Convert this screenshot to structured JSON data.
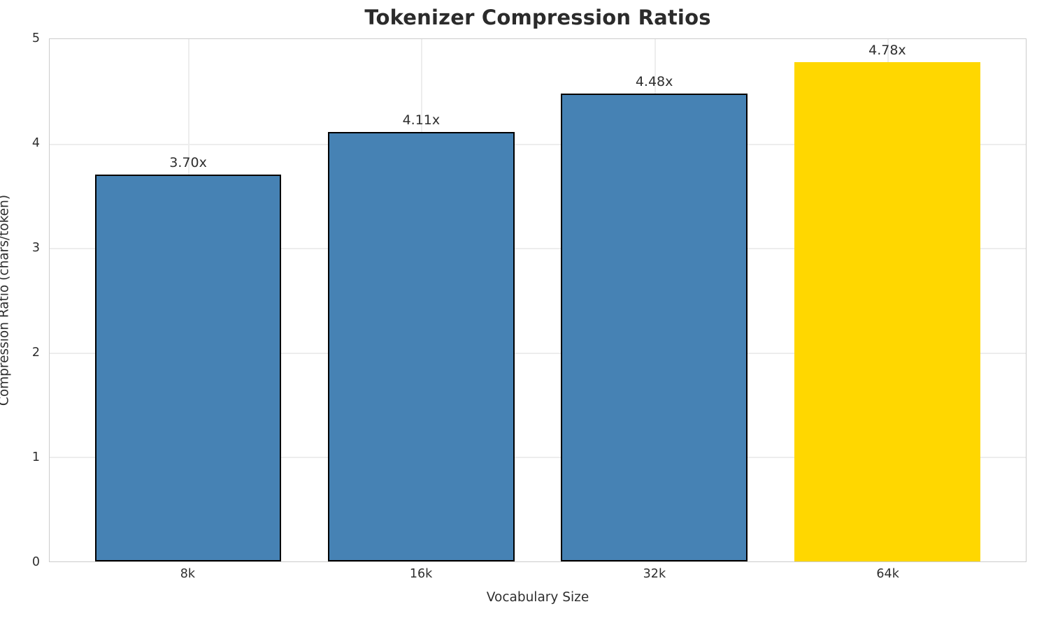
{
  "chart_data": {
    "type": "bar",
    "title": "Tokenizer Compression Ratios",
    "xlabel": "Vocabulary Size",
    "ylabel": "Compression Ratio (chars/token)",
    "categories": [
      "8k",
      "16k",
      "32k",
      "64k"
    ],
    "values": [
      3.7,
      4.11,
      4.48,
      4.78
    ],
    "bar_labels": [
      "3.70x",
      "4.11x",
      "4.48x",
      "4.78x"
    ],
    "bar_colors": [
      "#4682b4",
      "#4682b4",
      "#4682b4",
      "#ffd700"
    ],
    "bar_edge_colors": [
      "#000000",
      "#000000",
      "#000000",
      "none"
    ],
    "highlight_index": 3,
    "ylim": [
      0,
      5
    ],
    "yticks": [
      "0",
      "1",
      "2",
      "3",
      "4",
      "5"
    ],
    "grid": "both",
    "gridline_values": [
      1,
      2,
      3,
      4
    ],
    "legend": "none",
    "colors": {
      "bar_default": "#4682b4",
      "bar_highlight": "#ffd700",
      "bar_edge": "#000000",
      "grid": "#ededed",
      "spine": "#cccccc",
      "text": "#2e2e2e",
      "title_text": "#2b2b2b"
    }
  }
}
